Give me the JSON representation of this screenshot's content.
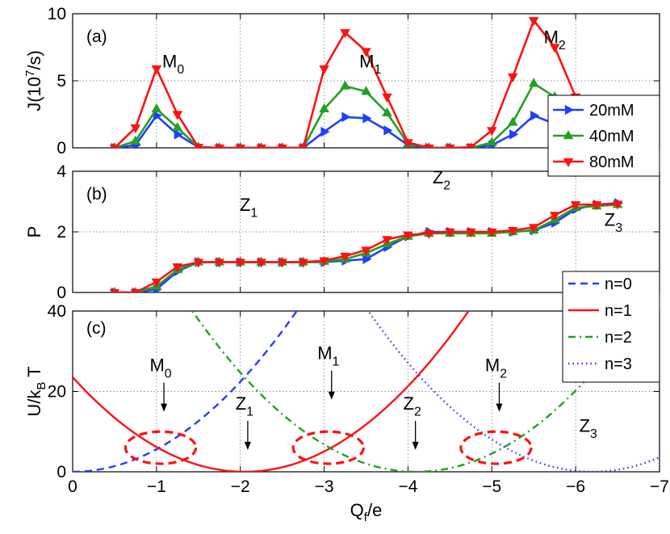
{
  "chart_data": [
    {
      "panel": "(a)",
      "type": "line",
      "ylabel": "J(10",
      "ylabel_sup": "7",
      "ylabel_tail": "/s)",
      "xlim": [
        0,
        -7
      ],
      "ylim": [
        0,
        10
      ],
      "yticks": [
        0,
        5,
        10
      ],
      "xticks": [
        0,
        -1,
        -2,
        -3,
        -4,
        -5,
        -6,
        -7
      ],
      "grid": true,
      "legend_position": "right",
      "annotations": [
        {
          "text": "M",
          "sub": "0",
          "x": -1.2,
          "y": 6.0
        },
        {
          "text": "M",
          "sub": "1",
          "x": -3.55,
          "y": 6.0
        },
        {
          "text": "M",
          "sub": "2",
          "x": -5.75,
          "y": 7.8
        }
      ],
      "series": [
        {
          "name": "20mM",
          "color": "#1f3fff",
          "marker": "tri-right",
          "x": [
            -0.5,
            -0.75,
            -1,
            -1.25,
            -1.5,
            -1.75,
            -2,
            -2.25,
            -2.5,
            -2.75,
            -3,
            -3.25,
            -3.5,
            -3.75,
            -4,
            -4.25,
            -4.5,
            -4.75,
            -5,
            -5.25,
            -5.5,
            -5.75,
            -6,
            -6.25,
            -6.5
          ],
          "y": [
            0,
            0.2,
            2.4,
            1.0,
            0.05,
            0,
            0,
            0,
            0,
            0,
            1.2,
            2.3,
            2.2,
            1.3,
            0.2,
            0,
            0,
            0,
            0.2,
            1.0,
            2.4,
            1.8,
            0.8,
            0.3,
            0.1
          ]
        },
        {
          "name": "40mM",
          "color": "#22a022",
          "marker": "tri-up",
          "x": [
            -0.5,
            -0.75,
            -1,
            -1.25,
            -1.5,
            -1.75,
            -2,
            -2.25,
            -2.5,
            -2.75,
            -3,
            -3.25,
            -3.5,
            -3.75,
            -4,
            -4.25,
            -4.5,
            -4.75,
            -5,
            -5.25,
            -5.5,
            -5.75,
            -6,
            -6.25,
            -6.5
          ],
          "y": [
            0,
            0.5,
            2.9,
            1.5,
            0.05,
            0,
            0,
            0,
            0,
            0,
            2.9,
            4.6,
            4.2,
            2.6,
            0.3,
            0,
            0,
            0,
            0.4,
            1.9,
            4.8,
            3.8,
            1.8,
            0.6,
            0.2
          ]
        },
        {
          "name": "80mM",
          "color": "#ff1111",
          "marker": "tri-down",
          "x": [
            -0.5,
            -0.75,
            -1,
            -1.25,
            -1.5,
            -1.75,
            -2,
            -2.25,
            -2.5,
            -2.75,
            -3,
            -3.25,
            -3.5,
            -3.75,
            -4,
            -4.25,
            -4.5,
            -4.75,
            -5,
            -5.25,
            -5.5,
            -5.75,
            -6,
            -6.25,
            -6.5
          ],
          "y": [
            0,
            1.5,
            5.9,
            2.5,
            0.05,
            0,
            0,
            0,
            0,
            0,
            5.9,
            8.6,
            7.2,
            3.8,
            0.4,
            0,
            0,
            0.05,
            1.3,
            5.3,
            9.5,
            7.5,
            3.8,
            1.5,
            0.4
          ]
        }
      ]
    },
    {
      "panel": "(b)",
      "type": "line",
      "ylabel": "P",
      "xlim": [
        0,
        -7
      ],
      "ylim": [
        0,
        4
      ],
      "yticks": [
        0,
        2,
        4
      ],
      "xticks": [
        0,
        -1,
        -2,
        -3,
        -4,
        -5,
        -6,
        -7
      ],
      "grid": true,
      "annotations": [
        {
          "text": "Z",
          "sub": "1",
          "x": -2.1,
          "y": 2.7
        },
        {
          "text": "Z",
          "sub": "2",
          "x": -4.4,
          "y": 3.6
        },
        {
          "text": "Z",
          "sub": "3",
          "x": -6.45,
          "y": 2.2
        }
      ],
      "series": [
        {
          "name": "20mM",
          "color": "#1f3fff",
          "marker": "tri-right",
          "x": [
            -0.5,
            -0.75,
            -1,
            -1.25,
            -1.5,
            -1.75,
            -2,
            -2.25,
            -2.5,
            -2.75,
            -3,
            -3.25,
            -3.5,
            -3.75,
            -4,
            -4.25,
            -4.5,
            -4.75,
            -5,
            -5.25,
            -5.5,
            -5.75,
            -6,
            -6.25,
            -6.5
          ],
          "y": [
            0,
            0,
            0.1,
            0.7,
            1.0,
            1.0,
            1.0,
            1.0,
            1.0,
            1.0,
            1.0,
            1.05,
            1.1,
            1.5,
            1.85,
            2.0,
            2.0,
            2.0,
            2.0,
            2.0,
            2.05,
            2.3,
            2.75,
            2.9,
            2.95
          ]
        },
        {
          "name": "40mM",
          "color": "#22a022",
          "marker": "tri-up",
          "x": [
            -0.5,
            -0.75,
            -1,
            -1.25,
            -1.5,
            -1.75,
            -2,
            -2.25,
            -2.5,
            -2.75,
            -3,
            -3.25,
            -3.5,
            -3.75,
            -4,
            -4.25,
            -4.5,
            -4.75,
            -5,
            -5.25,
            -5.5,
            -5.75,
            -6,
            -6.25,
            -6.5
          ],
          "y": [
            0,
            0,
            0.2,
            0.75,
            1.0,
            1.0,
            1.0,
            1.0,
            1.0,
            1.0,
            1.02,
            1.1,
            1.3,
            1.6,
            1.85,
            1.95,
            1.95,
            1.95,
            1.95,
            2.0,
            2.05,
            2.4,
            2.8,
            2.85,
            2.9
          ]
        },
        {
          "name": "80mM",
          "color": "#ff1111",
          "marker": "tri-down",
          "x": [
            -0.5,
            -0.75,
            -1,
            -1.25,
            -1.5,
            -1.75,
            -2,
            -2.25,
            -2.5,
            -2.75,
            -3,
            -3.25,
            -3.5,
            -3.75,
            -4,
            -4.25,
            -4.5,
            -4.75,
            -5,
            -5.25,
            -5.5,
            -5.75,
            -6,
            -6.25,
            -6.5
          ],
          "y": [
            0,
            0,
            0.35,
            0.85,
            1.0,
            1.0,
            1.0,
            1.0,
            1.0,
            1.0,
            1.05,
            1.2,
            1.4,
            1.75,
            1.9,
            1.95,
            2.0,
            2.0,
            2.0,
            2.05,
            2.15,
            2.55,
            2.9,
            2.9,
            2.92
          ]
        }
      ]
    },
    {
      "panel": "(c)",
      "type": "line",
      "ylabel": "U/k",
      "ylabel_sub": "B",
      "ylabel_tail": "T",
      "xlabel": "Q",
      "xlabel_sub": "f",
      "xlabel_tail": "/e",
      "xlim": [
        0,
        -7
      ],
      "ylim": [
        0,
        40
      ],
      "yticks": [
        0,
        20,
        40
      ],
      "xticks": [
        0,
        -1,
        -2,
        -3,
        -4,
        -5,
        -6,
        -7
      ],
      "xtick_labels": [
        "0",
        "−1",
        "−2",
        "−3",
        "−4",
        "−5",
        "−6",
        "−7"
      ],
      "grid": true,
      "legend_position": "top-right",
      "curves": [
        {
          "name": "n=0",
          "color": "#1f3fff",
          "style": "dashed",
          "center": 0,
          "k": 5.6
        },
        {
          "name": "n=1",
          "color": "#ff1111",
          "style": "solid",
          "center": -2.05,
          "k": 5.6
        },
        {
          "name": "n=2",
          "color": "#22a022",
          "style": "dashdot",
          "center": -4.1,
          "k": 5.6
        },
        {
          "name": "n=3",
          "color": "#3333ff",
          "style": "dotted",
          "center": -6.2,
          "k": 5.6
        }
      ],
      "ellipses": [
        {
          "cx": -1.05,
          "cy": 6.0,
          "rx": 0.42,
          "ry": 4.0
        },
        {
          "cx": -3.05,
          "cy": 6.0,
          "rx": 0.42,
          "ry": 4.0
        },
        {
          "cx": -5.05,
          "cy": 6.0,
          "rx": 0.42,
          "ry": 4.0
        }
      ],
      "annotations": [
        {
          "text": "M",
          "sub": "0",
          "x": -1.05,
          "y": 25.0,
          "arrow": true
        },
        {
          "text": "M",
          "sub": "1",
          "x": -3.05,
          "y": 28.0,
          "arrow": true
        },
        {
          "text": "M",
          "sub": "2",
          "x": -5.05,
          "y": 25.0,
          "arrow": true
        },
        {
          "text": "Z",
          "sub": "1",
          "x": -2.05,
          "y": 15.5,
          "arrow": true
        },
        {
          "text": "Z",
          "sub": "2",
          "x": -4.05,
          "y": 15.5,
          "arrow": true
        },
        {
          "text": "Z",
          "sub": "3",
          "x": -6.15,
          "y": 10.0,
          "arrow": false
        }
      ]
    }
  ]
}
